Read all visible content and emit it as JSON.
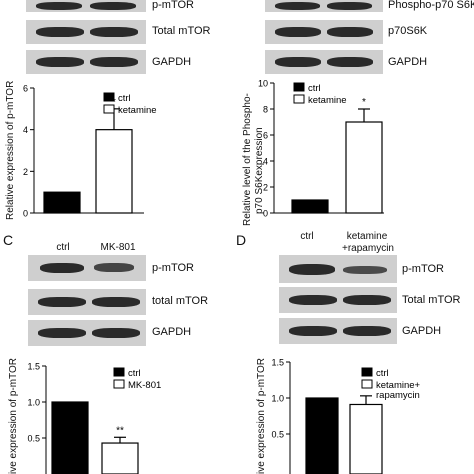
{
  "panelA": {
    "blots": [
      "p-mTOR",
      "Total mTOR",
      "GAPDH"
    ],
    "chart": {
      "ylabel": "Relative expression of p-mTOR",
      "yticks": [
        "0",
        "2",
        "4",
        "6"
      ],
      "significance": "*"
    }
  },
  "panelB": {
    "blots": [
      "Phospho-p70 S6K",
      "p70S6K",
      "GAPDH"
    ],
    "chart": {
      "ylabel_line1": "Relative level of the Phospho-",
      "ylabel_line2": "p70 S6Kexpression",
      "yticks": [
        "0",
        "2",
        "4",
        "6",
        "8",
        "10"
      ],
      "significance": "*"
    }
  },
  "panelC": {
    "letter": "C",
    "lanes": [
      "ctrl",
      "MK-801"
    ],
    "blots": [
      "p-mTOR",
      "total mTOR",
      "GAPDH"
    ],
    "chart": {
      "ylabel": "ive expression of p-mTOR",
      "yticks": [
        "1.5",
        "1.0",
        "0.5"
      ],
      "significance": "**"
    }
  },
  "panelD": {
    "letter": "D",
    "lanes": [
      "ctrl",
      "ketamine",
      "+rapamycin"
    ],
    "blots": [
      "p-mTOR",
      "Total mTOR",
      "GAPDH"
    ],
    "chart": {
      "ylabel": "ive expression of p-mTOR",
      "yticks": [
        "1.5",
        "1.0",
        "0.5"
      ]
    }
  },
  "chart_data": [
    {
      "type": "bar",
      "panel": "A",
      "categories": [
        "ctrl",
        "ketamine"
      ],
      "values": [
        1.0,
        4.0
      ],
      "errors": [
        0,
        1.0
      ],
      "ylabel": "Relative expression of p-mTOR",
      "ylim": [
        0,
        6
      ],
      "legend": [
        "ctrl",
        "ketamine"
      ],
      "colors": [
        "#000000",
        "#ffffff"
      ]
    },
    {
      "type": "bar",
      "panel": "B",
      "categories": [
        "ctrl",
        "ketamine"
      ],
      "values": [
        1.0,
        7.0
      ],
      "errors": [
        0,
        1.0
      ],
      "ylabel": "Relative level of the Phospho-p70 S6Kexpression",
      "ylim": [
        0,
        10
      ],
      "legend": [
        "ctrl",
        "ketamine"
      ],
      "colors": [
        "#000000",
        "#ffffff"
      ]
    },
    {
      "type": "bar",
      "panel": "C",
      "categories": [
        "ctrl",
        "MK-801"
      ],
      "values": [
        1.0,
        0.43
      ],
      "errors": [
        0,
        0.08
      ],
      "ylabel": "ive expression of p-mTOR",
      "ylim": [
        0.5,
        1.5
      ],
      "legend": [
        "ctrl",
        "MK-801"
      ],
      "colors": [
        "#000000",
        "#ffffff"
      ]
    },
    {
      "type": "bar",
      "panel": "D",
      "categories": [
        "ctrl",
        "ketamine+rapamycin"
      ],
      "values": [
        1.0,
        0.91
      ],
      "errors": [
        0,
        0.12
      ],
      "ylabel": "ive expression of p-mTOR",
      "ylim": [
        0.5,
        1.5
      ],
      "legend": [
        "ctrl",
        "ketamine+\nrapamycin"
      ],
      "legend_lines": [
        [
          "ctrl"
        ],
        [
          "ketamine+",
          "rapamycin"
        ]
      ],
      "colors": [
        "#000000",
        "#ffffff"
      ]
    }
  ]
}
